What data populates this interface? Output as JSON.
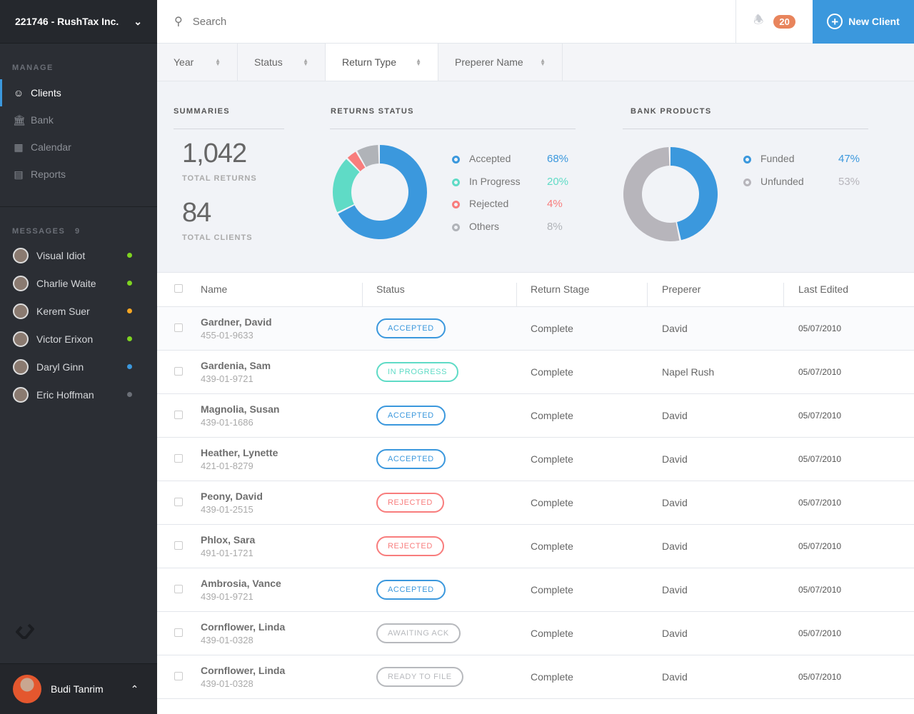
{
  "sidebar": {
    "org": "221746 - RushTax Inc.",
    "manage_label": "MANAGE",
    "nav": [
      {
        "label": "Clients",
        "icon": "user-icon"
      },
      {
        "label": "Bank",
        "icon": "bank-icon"
      },
      {
        "label": "Calendar",
        "icon": "calendar-icon"
      },
      {
        "label": "Reports",
        "icon": "clipboard-icon"
      }
    ],
    "messages_label": "MESSAGES",
    "messages_count": "9",
    "messages": [
      {
        "name": "Visual Idiot",
        "status": "#7ed321"
      },
      {
        "name": "Charlie Waite",
        "status": "#7ed321"
      },
      {
        "name": "Kerem Suer",
        "status": "#f5a623"
      },
      {
        "name": "Victor Erixon",
        "status": "#7ed321"
      },
      {
        "name": "Daryl Ginn",
        "status": "#3b98dd"
      },
      {
        "name": "Eric Hoffman",
        "status": "#6b6f77"
      }
    ],
    "user": "Budi Tanrim"
  },
  "topbar": {
    "search_placeholder": "Search",
    "notifications": "20",
    "new_client": "New Client"
  },
  "filters": [
    "Year",
    "Status",
    "Return Type",
    "Preperer Name"
  ],
  "summaries": {
    "title": "SUMMARIES",
    "total_returns": "1,042",
    "total_returns_label": "TOTAL RETURNS",
    "total_clients": "84",
    "total_clients_label": "TOTAL CLIENTS"
  },
  "returns_status": {
    "title": "RETURNS STATUS",
    "items": [
      {
        "label": "Accepted",
        "pct": "68%",
        "value": 68,
        "color": "#3b98dd"
      },
      {
        "label": "In Progress",
        "pct": "20%",
        "value": 20,
        "color": "#5fdbc6"
      },
      {
        "label": "Rejected",
        "pct": "4%",
        "value": 4,
        "color": "#f87d7d"
      },
      {
        "label": "Others",
        "pct": "8%",
        "value": 8,
        "color": "#b0b3b8"
      }
    ]
  },
  "bank_products": {
    "title": "BANK PRODUCTS",
    "items": [
      {
        "label": "Funded",
        "pct": "47%",
        "value": 47,
        "color": "#3b98dd"
      },
      {
        "label": "Unfunded",
        "pct": "53%",
        "value": 53,
        "color": "#b7b5bb"
      }
    ]
  },
  "table": {
    "headers": [
      "Name",
      "Status",
      "Return Stage",
      "Preperer",
      "Last Edited"
    ],
    "rows": [
      {
        "name": "Gardner, David",
        "ssn": "455-01-9633",
        "status": "ACCEPTED",
        "color": "#3b98dd",
        "stage": "Complete",
        "preparer": "David",
        "edited": "05/07/2010"
      },
      {
        "name": "Gardenia, Sam",
        "ssn": "439-01-9721",
        "status": "IN PROGRESS",
        "color": "#5fdbc6",
        "stage": "Complete",
        "preparer": "Napel Rush",
        "edited": "05/07/2010"
      },
      {
        "name": "Magnolia, Susan",
        "ssn": "439-01-1686",
        "status": "ACCEPTED",
        "color": "#3b98dd",
        "stage": "Complete",
        "preparer": "David",
        "edited": "05/07/2010"
      },
      {
        "name": "Heather, Lynette",
        "ssn": "421-01-8279",
        "status": "ACCEPTED",
        "color": "#3b98dd",
        "stage": "Complete",
        "preparer": "David",
        "edited": "05/07/2010"
      },
      {
        "name": "Peony, David",
        "ssn": "439-01-2515",
        "status": "REJECTED",
        "color": "#f87d7d",
        "stage": "Complete",
        "preparer": "David",
        "edited": "05/07/2010"
      },
      {
        "name": "Phlox, Sara",
        "ssn": "491-01-1721",
        "status": "REJECTED",
        "color": "#f87d7d",
        "stage": "Complete",
        "preparer": "David",
        "edited": "05/07/2010"
      },
      {
        "name": "Ambrosia, Vance",
        "ssn": "439-01-9721",
        "status": "ACCEPTED",
        "color": "#3b98dd",
        "stage": "Complete",
        "preparer": "David",
        "edited": "05/07/2010"
      },
      {
        "name": "Cornflower, Linda",
        "ssn": "439-01-0328",
        "status": "AWAITING ACK",
        "color": "#b7b9bd",
        "stage": "Complete",
        "preparer": "David",
        "edited": "05/07/2010"
      },
      {
        "name": "Cornflower, Linda",
        "ssn": "439-01-0328",
        "status": "READY TO FILE",
        "color": "#b7b9bd",
        "stage": "Complete",
        "preparer": "David",
        "edited": "05/07/2010"
      }
    ]
  }
}
